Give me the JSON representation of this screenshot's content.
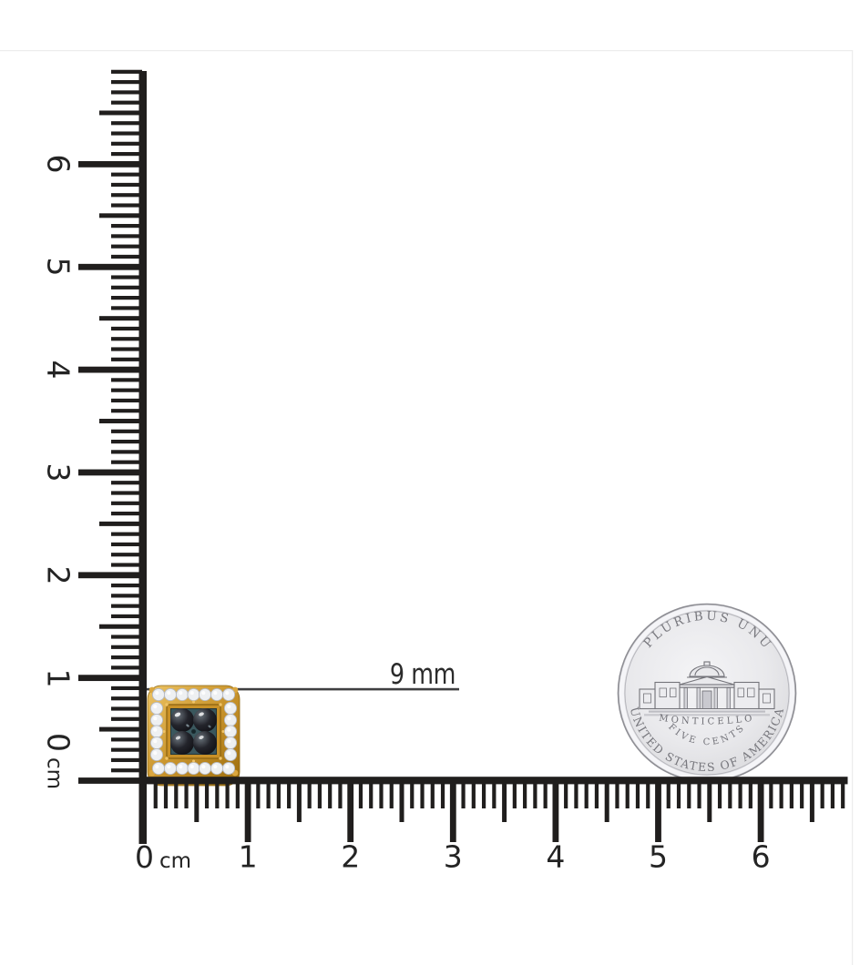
{
  "photo": {
    "description": "jewelry scale photo on white background",
    "edge_color": "#ececec",
    "background": "#ffffff"
  },
  "dimension": {
    "label": "9 mm",
    "line_color": "#3f3f41",
    "text_color": "#2b2b2b"
  },
  "rulers": {
    "ink_color": "#201e1d",
    "label_color": "#242424",
    "unit": "cm",
    "vertical": {
      "cm_labels": [
        "0",
        "1",
        "2",
        "3",
        "4",
        "5",
        "6"
      ]
    },
    "horizontal": {
      "cm_labels": [
        "0",
        "1",
        "2",
        "3",
        "4",
        "5",
        "6"
      ]
    }
  },
  "earring": {
    "name": "black diamond square stud earring with white diamond halo in gold",
    "colors": {
      "gold_light": "#edc465",
      "gold_mid": "#c9942c",
      "gold_dark": "#9c6d0e",
      "halo_stone": "#eef0f2",
      "halo_stroke": "#b6bac3",
      "bezel_teal": "#3a575d",
      "stone_black": "#0a0a0e",
      "stone_glint": "#6a737b"
    }
  },
  "coin": {
    "name": "US five cent coin reverse (Jefferson nickel)",
    "top_legend": "E PLURIBUS UNUM",
    "building_label": "MONTICELLO",
    "denomination": "FIVE CENTS",
    "bottom_legend": "UNITED STATES OF AMERICA",
    "field_color": "#ebebee",
    "rim_color": "#8e8e94",
    "legend_color": "#77777d"
  }
}
